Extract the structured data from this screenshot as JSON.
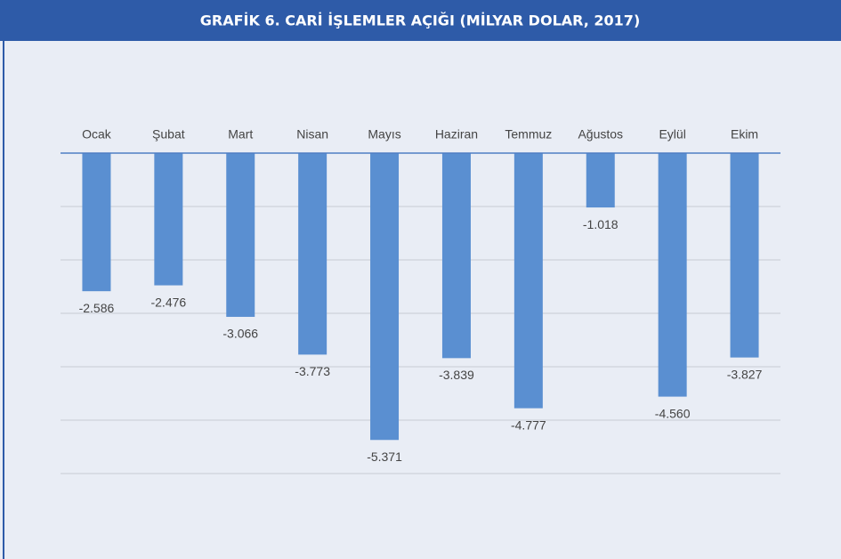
{
  "chart_data": {
    "type": "bar",
    "title": "GRAFİK 6. CARİ İŞLEMLER AÇIĞI (MİLYAR DOLAR, 2017)",
    "categories": [
      "Ocak",
      "Şubat",
      "Mart",
      "Nisan",
      "Mayıs",
      "Haziran",
      "Temmuz",
      "Ağustos",
      "Eylül",
      "Ekim"
    ],
    "values": [
      -2.586,
      -2.476,
      -3.066,
      -3.773,
      -5.371,
      -3.839,
      -4.777,
      -1.018,
      -4.56,
      -3.827
    ],
    "value_labels": [
      "-2.586",
      "-2.476",
      "-3.066",
      "-3.773",
      "-5.371",
      "-3.839",
      "-4.777",
      "-1.018",
      "-4.560",
      "-3.827"
    ],
    "color": "#5a8fd1",
    "ylim": [
      -6,
      0
    ],
    "yticks": [
      0,
      -1,
      -2,
      -3,
      -4,
      -5,
      -6
    ],
    "grid": true
  }
}
